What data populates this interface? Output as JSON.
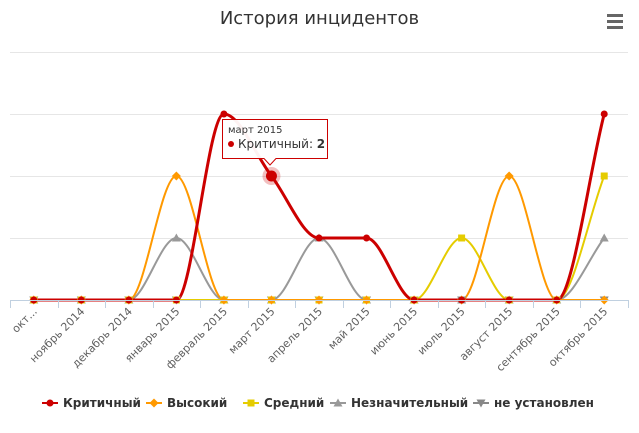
{
  "menu": {
    "icon": "hamburger-menu-icon"
  },
  "chart_data": {
    "type": "line",
    "title": "История инцидентов",
    "categories": [
      "октябрь 2014",
      "ноябрь 2014",
      "декабрь 2014",
      "январь 2015",
      "февраль 2015",
      "март 2015",
      "апрель 2015",
      "май 2015",
      "июнь 2015",
      "июль 2015",
      "август 2015",
      "сентябрь 2015",
      "октябрь 2015"
    ],
    "category_labels": [
      "окт...",
      "ноябрь 2014",
      "декабрь 2014",
      "январь 2015",
      "февраль 2015",
      "март 2015",
      "апрель 2015",
      "май 2015",
      "июнь 2015",
      "июль 2015",
      "август 2015",
      "сентябрь 2015",
      "октябрь 2015"
    ],
    "ylim": [
      0,
      4
    ],
    "grid": true,
    "legend_position": "bottom",
    "series": [
      {
        "name": "Критичный",
        "color": "#cc0000",
        "marker": "circle",
        "values": [
          0,
          0,
          0,
          0,
          3,
          2,
          1,
          1,
          0,
          0,
          0,
          0,
          3
        ]
      },
      {
        "name": "Высокий",
        "color": "#ff9900",
        "marker": "diamond",
        "values": [
          0,
          0,
          0,
          2,
          0,
          0,
          0,
          0,
          0,
          0,
          2,
          0,
          0
        ]
      },
      {
        "name": "Средний",
        "color": "#e5cc00",
        "marker": "square",
        "values": [
          0,
          0,
          0,
          0,
          0,
          0,
          0,
          0,
          0,
          1,
          0,
          0,
          2
        ]
      },
      {
        "name": "Незначительный",
        "color": "#999999",
        "marker": "triangle",
        "values": [
          0,
          0,
          0,
          1,
          0,
          0,
          1,
          0,
          0,
          0,
          0,
          0,
          1
        ]
      },
      {
        "name": "не установлен",
        "color": "#888888",
        "marker": "triangle-down",
        "values": [
          0,
          0,
          0,
          0,
          0,
          0,
          0,
          0,
          0,
          0,
          0,
          0,
          0
        ]
      }
    ],
    "tooltip": {
      "date": "март 2015",
      "series": "Критичный",
      "value": "2"
    }
  }
}
